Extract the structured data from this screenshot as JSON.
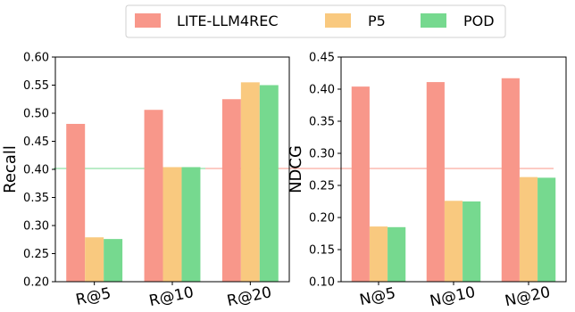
{
  "legend": {
    "placement": "top-center",
    "entries": [
      {
        "name": "LITE-LLM4REC",
        "color": "#f8978a"
      },
      {
        "name": "P5",
        "color": "#f9c97f"
      },
      {
        "name": "POD",
        "color": "#76d98f"
      }
    ]
  },
  "chart_data": [
    {
      "type": "bar",
      "title": "",
      "xlabel": "",
      "ylabel": "Recall",
      "ylim": [
        0.2,
        0.6
      ],
      "yticks": [
        "0.20",
        "0.25",
        "0.30",
        "0.35",
        "0.40",
        "0.45",
        "0.50",
        "0.55",
        "0.60"
      ],
      "categories": [
        "R@5",
        "R@10",
        "R@20"
      ],
      "grid": false,
      "series": [
        {
          "name": "LITE-LLM4REC",
          "values": [
            0.481,
            0.506,
            0.525
          ]
        },
        {
          "name": "P5",
          "values": [
            0.279,
            0.404,
            0.555
          ]
        },
        {
          "name": "POD",
          "values": [
            0.276,
            0.404,
            0.55
          ]
        }
      ]
    },
    {
      "type": "bar",
      "title": "",
      "xlabel": "",
      "ylabel": "NDCG",
      "ylim": [
        0.1,
        0.45
      ],
      "yticks": [
        "0.10",
        "0.15",
        "0.20",
        "0.25",
        "0.30",
        "0.35",
        "0.40",
        "0.45"
      ],
      "categories": [
        "N@5",
        "N@10",
        "N@20"
      ],
      "grid": false,
      "series": [
        {
          "name": "LITE-LLM4REC",
          "values": [
            0.404,
            0.411,
            0.417
          ]
        },
        {
          "name": "P5",
          "values": [
            0.186,
            0.226,
            0.263
          ]
        },
        {
          "name": "POD",
          "values": [
            0.185,
            0.225,
            0.262
          ]
        }
      ]
    }
  ]
}
